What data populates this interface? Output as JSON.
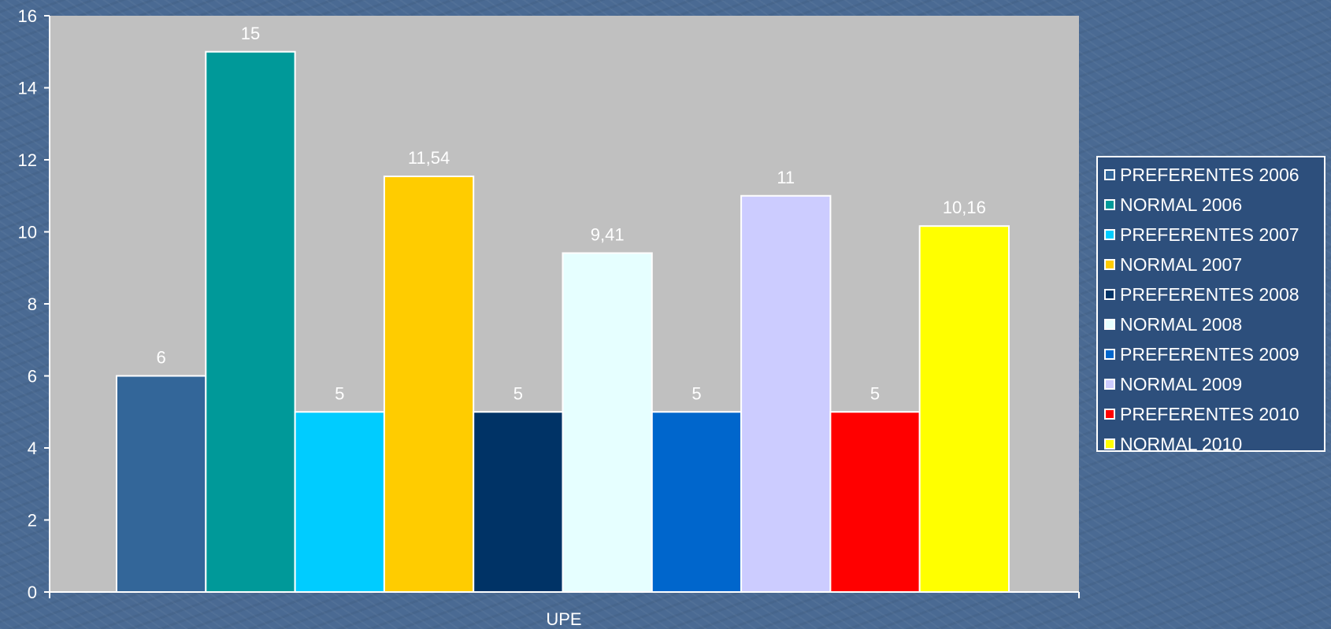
{
  "chart_data": {
    "type": "bar",
    "xlabel": "UPE",
    "ylabel": "",
    "categories": [
      "UPE"
    ],
    "ylim": [
      0,
      16
    ],
    "yticks": [
      "0",
      "2",
      "4",
      "6",
      "8",
      "10",
      "12",
      "14",
      "16"
    ],
    "grid": false,
    "legend_position": "right",
    "series": [
      {
        "name": "PREFERENTES 2006",
        "value": 6,
        "label": "6",
        "color": "#336699"
      },
      {
        "name": "NORMAL 2006",
        "value": 15,
        "label": "15",
        "color": "#009999"
      },
      {
        "name": "PREFERENTES 2007",
        "value": 5,
        "label": "5",
        "color": "#00ccff"
      },
      {
        "name": "NORMAL 2007",
        "value": 11.54,
        "label": "11,54",
        "color": "#ffcc00"
      },
      {
        "name": "PREFERENTES 2008",
        "value": 5,
        "label": "5",
        "color": "#003366"
      },
      {
        "name": "NORMAL 2008",
        "value": 9.41,
        "label": "9,41",
        "color": "#e6ffff"
      },
      {
        "name": "PREFERENTES 2009",
        "value": 5,
        "label": "5",
        "color": "#0066cc"
      },
      {
        "name": "NORMAL 2009",
        "value": 11,
        "label": "11",
        "color": "#ccccff"
      },
      {
        "name": "PREFERENTES 2010",
        "value": 5,
        "label": "5",
        "color": "#ff0000"
      },
      {
        "name": "NORMAL 2010",
        "value": 10.16,
        "label": "10,16",
        "color": "#ffff00"
      }
    ],
    "colors": {
      "plot_background": "#c0c0c0",
      "text": "#ffffff"
    }
  }
}
